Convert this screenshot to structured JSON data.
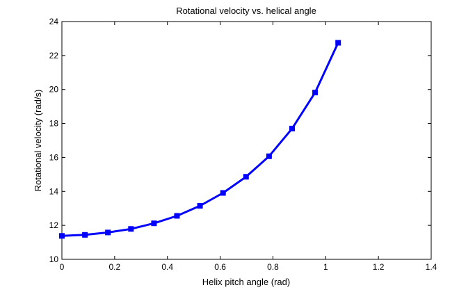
{
  "chart_data": {
    "type": "line",
    "title": "Rotational velocity vs. helical angle",
    "xlabel": "Helix pitch angle (rad)",
    "ylabel": "Rotational velocity (rad/s)",
    "xlim": [
      0,
      1.4
    ],
    "ylim": [
      10,
      24
    ],
    "xticks": [
      0,
      0.2,
      0.4,
      0.6,
      0.8,
      1,
      1.2,
      1.4
    ],
    "xtick_labels": [
      "0",
      "0.2",
      "0.4",
      "0.6",
      "0.8",
      "1",
      "1.2",
      "1.4"
    ],
    "yticks": [
      10,
      12,
      14,
      16,
      18,
      20,
      22,
      24
    ],
    "ytick_labels": [
      "10",
      "12",
      "14",
      "16",
      "18",
      "20",
      "22",
      "24"
    ],
    "grid": false,
    "legend": "none",
    "series": [
      {
        "color": "#0000ff",
        "marker": "square",
        "x": [
          0,
          0.0873,
          0.1745,
          0.2618,
          0.3491,
          0.4363,
          0.5236,
          0.6109,
          0.6981,
          0.7854,
          0.8727,
          0.9599,
          1.0472
        ],
        "y": [
          11.38,
          11.44,
          11.58,
          11.79,
          12.12,
          12.56,
          13.15,
          13.91,
          14.86,
          16.07,
          17.7,
          19.82,
          22.75
        ]
      }
    ]
  }
}
